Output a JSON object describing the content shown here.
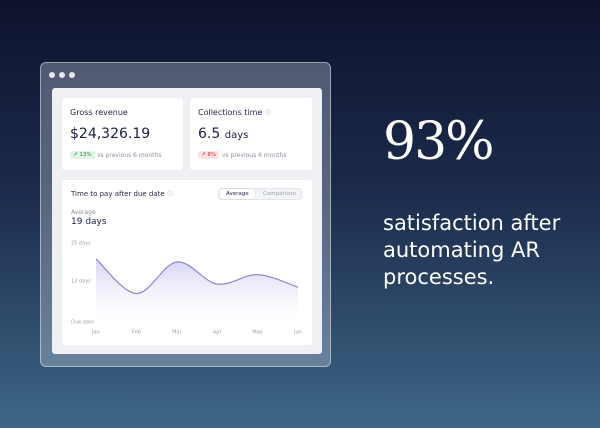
{
  "cards": [
    {
      "title": "Gross revenue",
      "value": "$24,326.19",
      "change": "13%",
      "note": "vs previous 6 months"
    },
    {
      "title": "Collections time",
      "value": "6.5",
      "unit": "days",
      "change": "8%",
      "note": "vs previous 6 months"
    }
  ],
  "toggle": [
    "Average",
    "Comparison"
  ],
  "summary": {
    "label": "Average",
    "value": "19 days"
  },
  "headline": {
    "stat": "93%",
    "lines": [
      "satisfaction after",
      "automating AR",
      "processes."
    ]
  },
  "chart_data": {
    "type": "line",
    "title": "Time to pay after due date",
    "categories": [
      "Jan",
      "Feb",
      "Mar",
      "Apr",
      "May",
      "Jun"
    ],
    "values": [
      20,
      9,
      19,
      12,
      15,
      11
    ],
    "color": "#8a86cf",
    "ylim": [
      0,
      25
    ],
    "yticks": [
      {
        "value": 25,
        "label": "25 days"
      },
      {
        "value": 13,
        "label": "13 days"
      },
      {
        "value": 0,
        "label": "Due date"
      }
    ]
  }
}
